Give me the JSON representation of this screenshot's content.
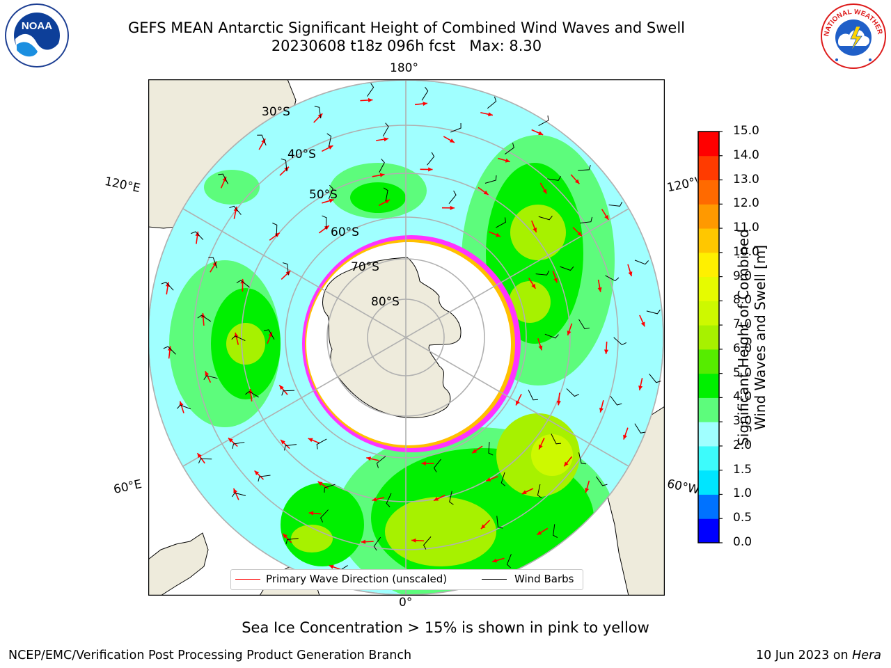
{
  "header": {
    "title_line1": "GEFS MEAN Antarctic Significant Height of Combined Wind Waves and Swell",
    "title_line2": "20230608 t18z 096h fcst   Max: 8.30"
  },
  "logos": {
    "left": {
      "name": "noaa-logo",
      "text": "NOAA"
    },
    "right": {
      "name": "nws-logo",
      "text": "NATIONAL WEATHER SERVICE"
    }
  },
  "map": {
    "projection": "south polar stereographic",
    "longitude_labels": {
      "top": "180°",
      "bottom": "0°",
      "upper_left": "120°E",
      "upper_right": "120°W",
      "lower_left": "60°E",
      "lower_right": "60°W"
    },
    "latitude_labels": [
      "30°S",
      "40°S",
      "50°S",
      "60°S",
      "70°S",
      "80°S"
    ]
  },
  "legend": {
    "items": [
      {
        "label": "Primary Wave Direction (unscaled)",
        "color": "#ff0000"
      },
      {
        "label": "Wind Barbs",
        "color": "#000000"
      }
    ]
  },
  "colorbar": {
    "label_line1": "Significant Height of Combined",
    "label_line2": "Wind Waves and Swell [m]",
    "ticks": [
      "0.0",
      "0.5",
      "1.0",
      "1.5",
      "2.0",
      "3.0",
      "4.0",
      "5.0",
      "6.0",
      "7.0",
      "8.0",
      "9.0",
      "10.0",
      "11.0",
      "12.0",
      "13.0",
      "14.0",
      "15.0"
    ],
    "colors": [
      "#0000ff",
      "#0072ff",
      "#00e5ff",
      "#3dfbfb",
      "#a0ffff",
      "#5dfc7c",
      "#00f000",
      "#56ec00",
      "#a7f100",
      "#cdf900",
      "#e6fb00",
      "#fff000",
      "#ffc700",
      "#ff9900",
      "#ff6a00",
      "#ff3b00",
      "#ff0000"
    ]
  },
  "caption": "Sea Ice Concentration > 15% is shown in pink to yellow",
  "footer": {
    "left": "NCEP/EMC/Verification Post Processing Product Generation Branch",
    "right_date": "10 Jun 2023 on ",
    "right_host": "Hera"
  },
  "colors": {
    "land": "#eeebdc",
    "ocean_low": "#a0ffff",
    "ice_edge": "#ff33ff",
    "ice_fill": "#ffffff",
    "graticule": "#b0b0b0",
    "wave_arrow": "#ff0000",
    "wind_barb": "#000000"
  }
}
